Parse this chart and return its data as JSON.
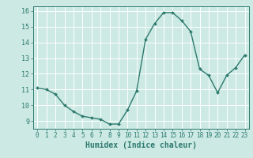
{
  "x": [
    0,
    1,
    2,
    3,
    4,
    5,
    6,
    7,
    8,
    9,
    10,
    11,
    12,
    13,
    14,
    15,
    16,
    17,
    18,
    19,
    20,
    21,
    22,
    23
  ],
  "y": [
    11.1,
    11.0,
    10.7,
    10.0,
    9.6,
    9.3,
    9.2,
    9.1,
    8.8,
    8.8,
    9.7,
    10.9,
    14.2,
    15.2,
    15.9,
    15.9,
    15.4,
    14.7,
    12.3,
    11.9,
    10.8,
    11.9,
    12.4,
    13.2
  ],
  "xlabel": "Humidex (Indice chaleur)",
  "bg_color": "#cce9e4",
  "grid_color": "#ffffff",
  "line_color": "#2d7a6e",
  "marker_color": "#2d7a6e",
  "xlim": [
    -0.5,
    23.5
  ],
  "ylim": [
    8.5,
    16.3
  ],
  "xticks": [
    0,
    1,
    2,
    3,
    4,
    5,
    6,
    7,
    8,
    9,
    10,
    11,
    12,
    13,
    14,
    15,
    16,
    17,
    18,
    19,
    20,
    21,
    22,
    23
  ],
  "yticks": [
    9,
    10,
    11,
    12,
    13,
    14,
    15,
    16
  ],
  "tick_label_color": "#2d7a6e",
  "xlabel_color": "#2d7a6e",
  "tick_fontsize": 5.5,
  "xlabel_fontsize": 7.0,
  "ytick_fontsize": 6.0
}
